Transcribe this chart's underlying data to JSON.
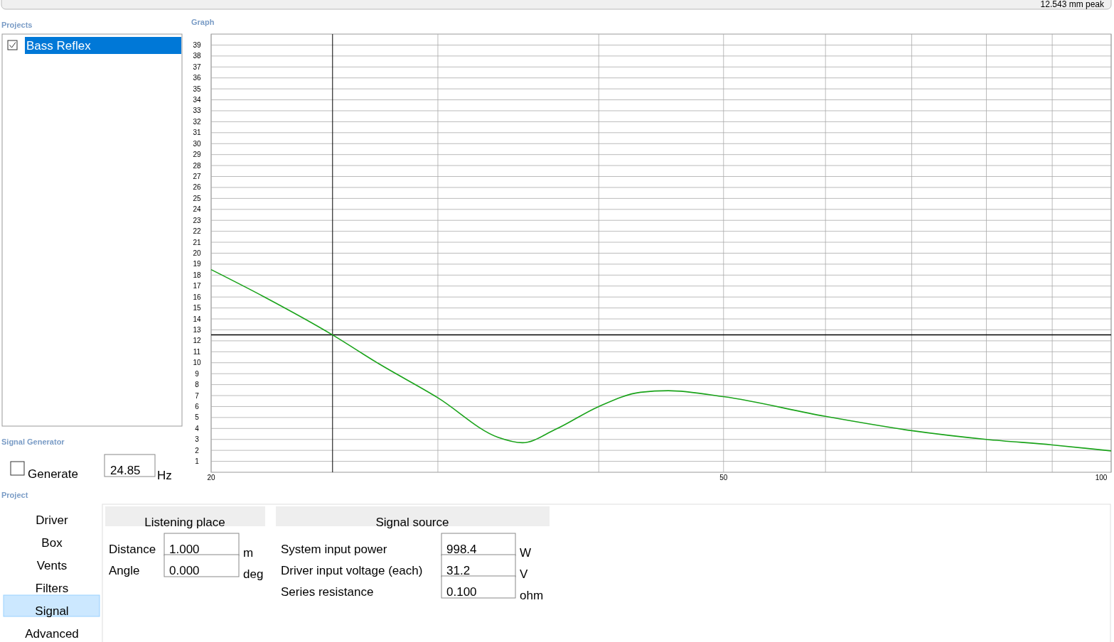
{
  "chart_data": {
    "type": "line",
    "title": "Graph",
    "log": "x",
    "grid": true,
    "xlim": [
      20,
      100
    ],
    "xticks": [
      20,
      {
        "value": 30,
        "label": null
      },
      {
        "value": 40,
        "label": null
      },
      50,
      {
        "value": 60,
        "label": null
      },
      {
        "value": 70,
        "label": null
      },
      {
        "value": 80,
        "label": null
      },
      {
        "value": 90,
        "label": null
      },
      100
    ],
    "ylim": [
      0,
      40
    ],
    "yticks": [
      1,
      2,
      3,
      4,
      5,
      6,
      7,
      8,
      9,
      10,
      11,
      12,
      13,
      14,
      15,
      16,
      17,
      18,
      19,
      20,
      21,
      22,
      23,
      24,
      25,
      26,
      27,
      28,
      29,
      30,
      31,
      32,
      33,
      34,
      35,
      36,
      37,
      38,
      39
    ],
    "series": [
      {
        "color": "#1aa31a",
        "x": [
          20,
          22,
          24.85,
          27,
          30,
          33.4,
          34.9,
          37,
          40,
          43.1,
          45.3,
          50,
          60,
          70,
          80,
          90,
          100
        ],
        "values": [
          18.5,
          16.0,
          12.54,
          9.9,
          6.8,
          3.2,
          2.7,
          3.9,
          6.0,
          7.3,
          7.45,
          6.9,
          5.1,
          3.8,
          3.0,
          2.5,
          1.95
        ]
      }
    ],
    "ref_lines": [
      {
        "axis": "x",
        "value": 24.85,
        "color": "#000000"
      },
      {
        "axis": "y",
        "value": 12.543,
        "color": "#000000"
      }
    ],
    "annotations": [
      "12.543 mm peak",
      "Projects",
      "Bass Reflex",
      "Signal Generator",
      "Generate",
      "24.85",
      "Hz",
      "Project",
      "Driver",
      "Box",
      "Vents",
      "Filters",
      "Signal",
      "Advanced",
      "Listening place",
      "Distance",
      "1.000",
      "m",
      "Angle",
      "0.000",
      "deg",
      "Signal source",
      "System input power",
      "998.4",
      "W",
      "Driver input voltage (each)",
      "31.2",
      "V",
      "Series resistance",
      "0.100",
      "ohm"
    ]
  }
}
